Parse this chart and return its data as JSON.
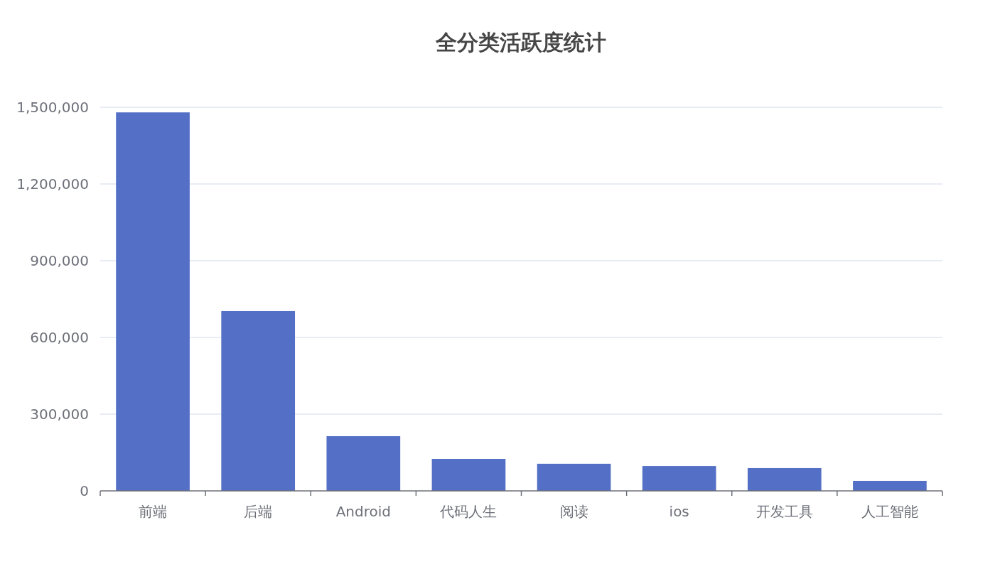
{
  "chart_data": {
    "type": "bar",
    "title": "全分类活跃度统计",
    "categories": [
      "前端",
      "后端",
      "Android",
      "代码人生",
      "阅读",
      "ios",
      "开发工具",
      "人工智能"
    ],
    "values": [
      1480000,
      703000,
      214000,
      125000,
      106000,
      97000,
      89000,
      39000
    ],
    "color": "#5470c6",
    "ylim": [
      0,
      1500000
    ],
    "yticks": [
      0,
      {
        "value": 300000,
        "label": "300,000"
      },
      {
        "value": 600000,
        "label": "600,000"
      },
      {
        "value": 900000,
        "label": "900,000"
      },
      {
        "value": 1200000,
        "label": "1,200,000"
      },
      {
        "value": 1500000,
        "label": "1,500,000"
      }
    ],
    "grid": "y"
  }
}
